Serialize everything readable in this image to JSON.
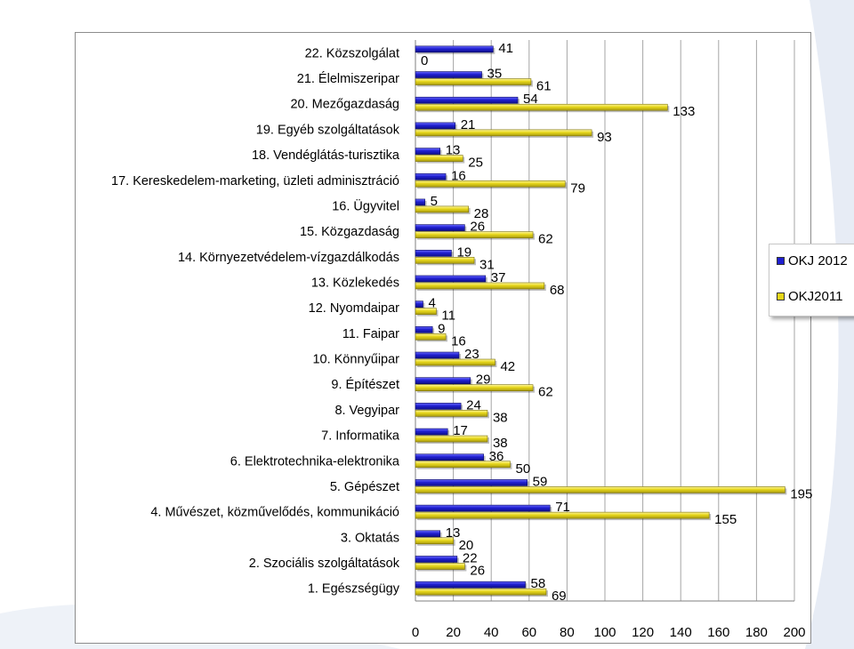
{
  "chart_data": {
    "type": "bar",
    "orientation": "horizontal",
    "categories": [
      "22. Közszolgálat",
      "21. Élelmiszeripar",
      "20. Mezőgazdaság",
      "19. Egyéb szolgáltatások",
      "18. Vendéglátás-turisztika",
      "17. Kereskedelem-marketing, üzleti adminisztráció",
      "16. Ügyvitel",
      "15. Közgazdaság",
      "14. Környezetvédelem-vízgazdálkodás",
      "13. Közlekedés",
      "12. Nyomdaipar",
      "11. Faipar",
      "10. Könnyűipar",
      "9. Építészet",
      "8. Vegyipar",
      "7. Informatika",
      "6. Elektrotechnika-elektronika",
      "5. Gépészet",
      "4. Művészet, közművelődés, kommunikáció",
      "3. Oktatás",
      "2. Szociális szolgáltatások",
      "1. Egészségügy"
    ],
    "series": [
      {
        "name": "OKJ 2012",
        "color": "#1f1fd0",
        "values": [
          41,
          35,
          54,
          21,
          13,
          16,
          5,
          26,
          19,
          37,
          4,
          9,
          23,
          29,
          24,
          17,
          36,
          59,
          71,
          13,
          22,
          58
        ]
      },
      {
        "name": "OKJ2011",
        "color": "#e6d619",
        "values": [
          0,
          61,
          133,
          93,
          25,
          79,
          28,
          62,
          31,
          68,
          11,
          16,
          42,
          62,
          38,
          38,
          50,
          195,
          155,
          20,
          26,
          69
        ]
      }
    ],
    "xlim": [
      0,
      200
    ],
    "x_ticks": [
      "0",
      "20",
      "40",
      "60",
      "80",
      "100",
      "120",
      "140",
      "160",
      "180",
      "200"
    ],
    "grid": true,
    "legend_position": "right",
    "title": "",
    "xlabel": "",
    "ylabel": ""
  }
}
